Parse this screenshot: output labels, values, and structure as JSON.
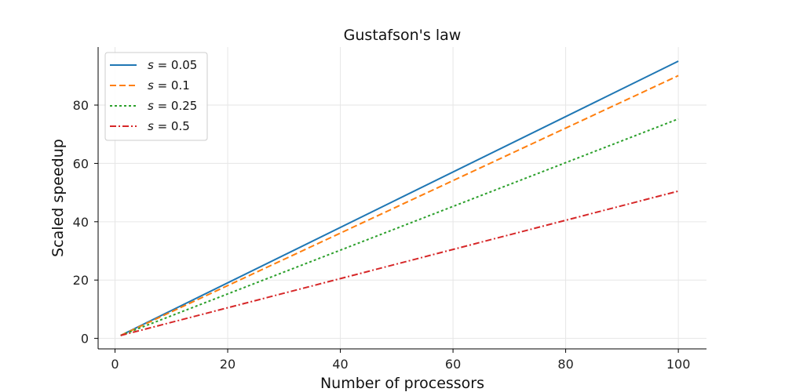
{
  "chart_data": {
    "type": "line",
    "title": "Gustafson's law",
    "xlabel": "Number of processors",
    "ylabel": "Scaled speedup",
    "xlim": [
      -3,
      105
    ],
    "ylim": [
      -3.6,
      99.9
    ],
    "xticks": [
      0,
      20,
      40,
      60,
      80,
      100
    ],
    "yticks": [
      0,
      20,
      40,
      60,
      80
    ],
    "grid": true,
    "legend_position": "upper-left",
    "x": [
      1,
      100
    ],
    "series": [
      {
        "name": "s = 0.05",
        "legend_var": "s",
        "legend_value": "= 0.05",
        "color": "#1f77b4",
        "style": "solid",
        "values": [
          1,
          95.05
        ]
      },
      {
        "name": "s = 0.1",
        "legend_var": "s",
        "legend_value": "= 0.1",
        "color": "#ff7f0e",
        "style": "dashed",
        "values": [
          1,
          90.1
        ]
      },
      {
        "name": "s = 0.25",
        "legend_var": "s",
        "legend_value": "= 0.25",
        "color": "#2ca02c",
        "style": "dotted",
        "values": [
          1,
          75.25
        ]
      },
      {
        "name": "s = 0.5",
        "legend_var": "s",
        "legend_value": "= 0.5",
        "color": "#d62728",
        "style": "dashdot",
        "values": [
          1,
          50.5
        ]
      }
    ]
  }
}
